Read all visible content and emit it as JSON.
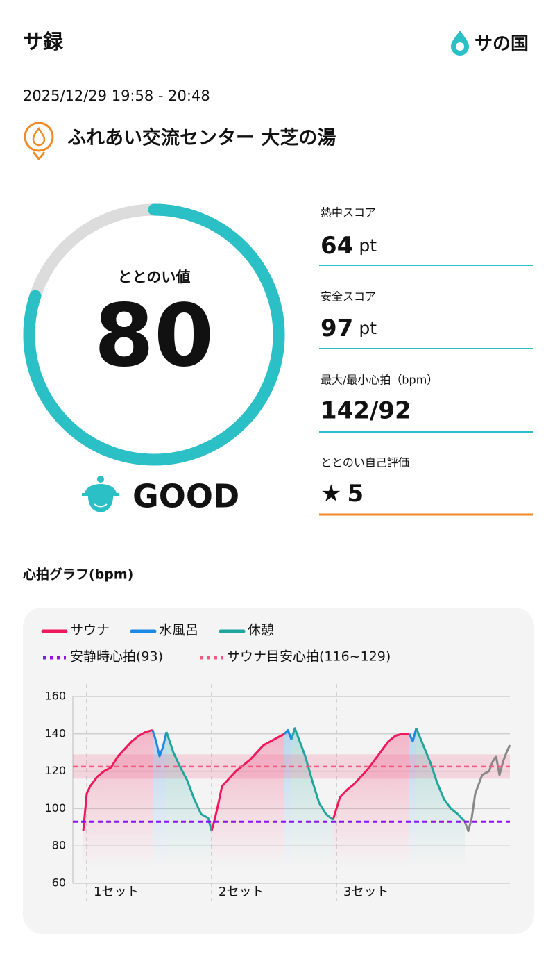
{
  "header": {
    "title": "サ録",
    "logo": "サの国"
  },
  "session": {
    "datetime": "2025/12/29 19:58 - 20:48",
    "facility": "ふれあい交流センター 大芝の湯"
  },
  "score": {
    "label": "ととのい値",
    "value": 80,
    "rating": "GOOD"
  },
  "stats": [
    {
      "label": "熱中スコア",
      "value": 64,
      "unit": "pt"
    },
    {
      "label": "安全スコア",
      "value": 97,
      "unit": "pt"
    },
    {
      "label": "最大/最小心拍（bpm）",
      "value": "142/92"
    },
    {
      "label": "ととのい自己評価",
      "icon": "★",
      "value": 5
    }
  ],
  "chart_data": {
    "type": "line",
    "title": "心拍グラフ(bpm)",
    "xlim": [
      0,
      126
    ],
    "ylim": [
      60,
      160
    ],
    "yticks": [
      60,
      80,
      100,
      120,
      140,
      160
    ],
    "grid": true,
    "sets": [
      {
        "label": "1セット",
        "x": 4
      },
      {
        "label": "2セット",
        "x": 40
      },
      {
        "label": "3セット",
        "x": 76
      }
    ],
    "rest": {
      "label": "安静時心拍(93)",
      "value": 93,
      "color": "#8a14f0"
    },
    "target": {
      "label": "サウナ目安心拍(116~129)",
      "range": [
        116,
        129
      ],
      "color": "#f05a82"
    },
    "series": [
      {
        "name": "サウナ",
        "color": "#f0175a",
        "x": [
          3,
          4,
          5,
          7,
          9,
          11,
          13,
          15,
          17,
          19,
          21,
          23,
          null,
          40,
          41,
          42,
          43,
          45,
          47,
          49,
          51,
          53,
          55,
          57,
          59,
          61,
          null,
          75,
          76,
          77,
          79,
          81,
          83,
          85,
          87,
          89,
          91,
          93,
          95,
          97
        ],
        "values": [
          88,
          108,
          112,
          117,
          120,
          122,
          128,
          132,
          136,
          139,
          141,
          142,
          null,
          88,
          95,
          103,
          112,
          116,
          120,
          123,
          126,
          130,
          134,
          136,
          138,
          140,
          null,
          94,
          100,
          106,
          110,
          113,
          117,
          121,
          126,
          131,
          136,
          139,
          140,
          140
        ]
      },
      {
        "name": "水風呂",
        "color": "#1e88e5",
        "x": [
          23,
          24,
          25,
          26,
          27,
          null,
          61,
          62,
          63,
          null,
          97,
          98,
          99
        ],
        "values": [
          142,
          136,
          128,
          133,
          141,
          null,
          140,
          142,
          137,
          null,
          140,
          136,
          143
        ]
      },
      {
        "name": "休憩",
        "color": "#1fa59c",
        "x": [
          27,
          29,
          31,
          33,
          35,
          37,
          39,
          40,
          null,
          63,
          64,
          65,
          67,
          69,
          71,
          73,
          75,
          null,
          99,
          101,
          103,
          105,
          107,
          109,
          111,
          113
        ],
        "values": [
          141,
          130,
          122,
          115,
          105,
          97,
          95,
          88,
          null,
          137,
          143,
          138,
          128,
          115,
          103,
          97,
          94,
          null,
          143,
          134,
          125,
          114,
          105,
          100,
          97,
          93
        ]
      },
      {
        "color": "#888888",
        "x": [
          113,
          114,
          115,
          116,
          118,
          120,
          121,
          122,
          123,
          124,
          125,
          126
        ],
        "values": [
          93,
          88,
          95,
          108,
          118,
          120,
          125,
          128,
          118,
          125,
          130,
          134
        ]
      }
    ]
  }
}
